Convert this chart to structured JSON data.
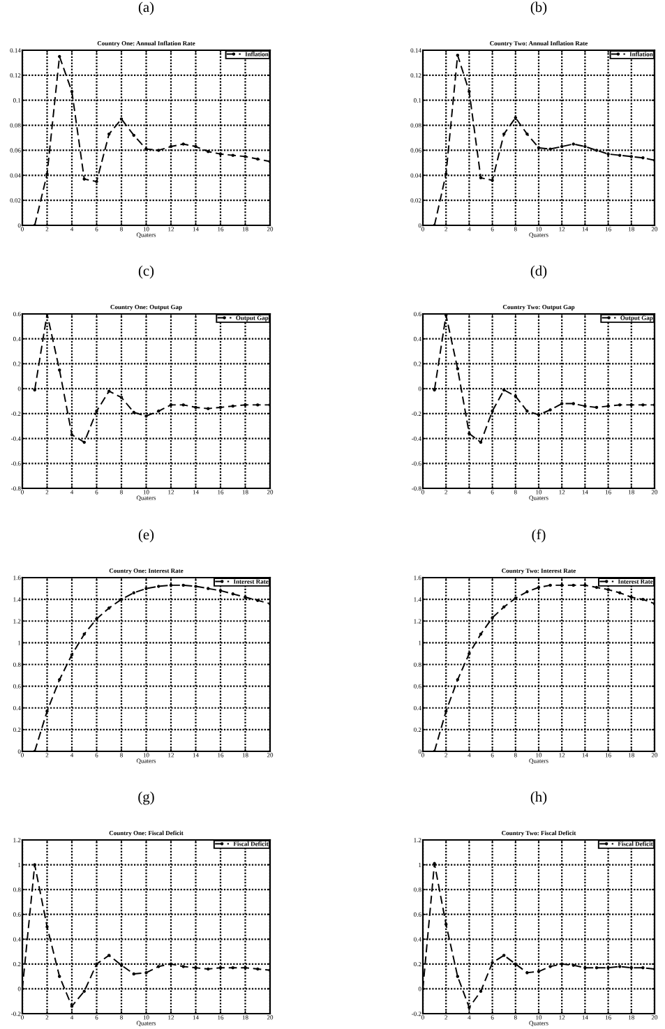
{
  "chart_data": [
    {
      "type": "line",
      "title": "Country One: Annual Inflation Rate",
      "xlabel": "Quaters",
      "annotations": [
        "(a)"
      ],
      "x": [
        1,
        2,
        3,
        4,
        5,
        6,
        7,
        8,
        9,
        10,
        11,
        12,
        13,
        14,
        15,
        16,
        17,
        18,
        19,
        20
      ],
      "series": [
        {
          "name": "Inflation",
          "color": "#000000",
          "values": [
            0,
            0.041,
            0.135,
            0.107,
            0.037,
            0.035,
            0.073,
            0.085,
            0.072,
            0.061,
            0.06,
            0.063,
            0.065,
            0.063,
            0.059,
            0.057,
            0.056,
            0.055,
            0.053,
            0.051
          ]
        }
      ],
      "xlim": [
        0,
        20
      ],
      "ylim": [
        0,
        0.14
      ],
      "xticks": [
        0,
        2,
        4,
        6,
        8,
        10,
        12,
        14,
        16,
        18,
        20
      ],
      "yticks": [
        0,
        0.02,
        0.04,
        0.06,
        0.08,
        0.1,
        0.12,
        0.14
      ],
      "grid": true,
      "legend": "top right",
      "marker": "circle",
      "line_style": "dashed"
    },
    {
      "type": "line",
      "title": "Country Two: Annual Inflation Rate",
      "xlabel": "Quaters",
      "annotations": [
        "(b)"
      ],
      "x": [
        1,
        2,
        3,
        4,
        5,
        6,
        7,
        8,
        9,
        10,
        11,
        12,
        13,
        14,
        15,
        16,
        17,
        18,
        19,
        20
      ],
      "series": [
        {
          "name": "Inflation",
          "color": "#000000",
          "values": [
            0,
            0.041,
            0.136,
            0.107,
            0.038,
            0.036,
            0.073,
            0.086,
            0.073,
            0.062,
            0.061,
            0.063,
            0.065,
            0.063,
            0.06,
            0.057,
            0.056,
            0.055,
            0.054,
            0.052
          ]
        }
      ],
      "xlim": [
        0,
        20
      ],
      "ylim": [
        0,
        0.14
      ],
      "xticks": [
        0,
        2,
        4,
        6,
        8,
        10,
        12,
        14,
        16,
        18,
        20
      ],
      "yticks": [
        0,
        0.02,
        0.04,
        0.06,
        0.08,
        0.1,
        0.12,
        0.14
      ],
      "grid": true,
      "legend": "top right",
      "marker": "circle",
      "line_style": "dashed"
    },
    {
      "type": "line",
      "title": "Country One: Output Gap",
      "xlabel": "Quaters",
      "annotations": [
        "(c)"
      ],
      "x": [
        1,
        2,
        3,
        4,
        5,
        6,
        7,
        8,
        9,
        10,
        11,
        12,
        13,
        14,
        15,
        16,
        17,
        18,
        19,
        20
      ],
      "series": [
        {
          "name": "Output Gap",
          "color": "#000000",
          "values": [
            -0.01,
            0.6,
            0.15,
            -0.37,
            -0.43,
            -0.18,
            -0.02,
            -0.07,
            -0.19,
            -0.22,
            -0.18,
            -0.13,
            -0.13,
            -0.15,
            -0.16,
            -0.15,
            -0.14,
            -0.13,
            -0.13,
            -0.13
          ]
        }
      ],
      "xlim": [
        0,
        20
      ],
      "ylim": [
        -0.8,
        0.6
      ],
      "xticks": [
        0,
        2,
        4,
        6,
        8,
        10,
        12,
        14,
        16,
        18,
        20
      ],
      "yticks": [
        -0.8,
        -0.6,
        -0.4,
        -0.2,
        0,
        0.2,
        0.4,
        0.6
      ],
      "grid": true,
      "legend": "top right",
      "marker": "circle",
      "line_style": "dashed"
    },
    {
      "type": "line",
      "title": "Country Two: Output Gap",
      "xlabel": "Quaters",
      "annotations": [
        "(d)"
      ],
      "x": [
        1,
        2,
        3,
        4,
        5,
        6,
        7,
        8,
        9,
        10,
        11,
        12,
        13,
        14,
        15,
        16,
        17,
        18,
        19,
        20
      ],
      "series": [
        {
          "name": "Output Gap",
          "color": "#000000",
          "values": [
            -0.01,
            0.59,
            0.16,
            -0.36,
            -0.43,
            -0.18,
            -0.01,
            -0.06,
            -0.18,
            -0.21,
            -0.17,
            -0.12,
            -0.12,
            -0.14,
            -0.15,
            -0.14,
            -0.13,
            -0.13,
            -0.13,
            -0.13
          ]
        }
      ],
      "xlim": [
        0,
        20
      ],
      "ylim": [
        -0.8,
        0.6
      ],
      "xticks": [
        0,
        2,
        4,
        6,
        8,
        10,
        12,
        14,
        16,
        18,
        20
      ],
      "yticks": [
        -0.8,
        -0.6,
        -0.4,
        -0.2,
        0,
        0.2,
        0.4,
        0.6
      ],
      "grid": true,
      "legend": "top right",
      "marker": "circle",
      "line_style": "dashed"
    },
    {
      "type": "line",
      "title": "Country One: Interest Rate",
      "xlabel": "Quaters",
      "annotations": [
        "(e)"
      ],
      "x": [
        1,
        2,
        3,
        4,
        5,
        6,
        7,
        8,
        9,
        10,
        11,
        12,
        13,
        14,
        15,
        16,
        17,
        18,
        19,
        20
      ],
      "series": [
        {
          "name": "Interest Rate",
          "color": "#000000",
          "values": [
            0,
            0.37,
            0.66,
            0.89,
            1.08,
            1.22,
            1.32,
            1.4,
            1.46,
            1.5,
            1.52,
            1.53,
            1.53,
            1.52,
            1.5,
            1.48,
            1.45,
            1.42,
            1.39,
            1.36
          ]
        }
      ],
      "xlim": [
        0,
        20
      ],
      "ylim": [
        0,
        1.6
      ],
      "xticks": [
        0,
        2,
        4,
        6,
        8,
        10,
        12,
        14,
        16,
        18,
        20
      ],
      "yticks": [
        0,
        0.2,
        0.4,
        0.6,
        0.8,
        1,
        1.2,
        1.4,
        1.6
      ],
      "grid": true,
      "legend": "top right",
      "marker": "circle",
      "line_style": "dashed"
    },
    {
      "type": "line",
      "title": "Country Two: Interest Rate",
      "xlabel": "Quaters",
      "annotations": [
        "(f)"
      ],
      "x": [
        1,
        2,
        3,
        4,
        5,
        6,
        7,
        8,
        9,
        10,
        11,
        12,
        13,
        14,
        15,
        16,
        17,
        18,
        19,
        20
      ],
      "series": [
        {
          "name": "Interest Rate",
          "color": "#000000",
          "values": [
            0,
            0.37,
            0.66,
            0.9,
            1.08,
            1.23,
            1.33,
            1.41,
            1.47,
            1.51,
            1.53,
            1.53,
            1.53,
            1.53,
            1.51,
            1.49,
            1.46,
            1.42,
            1.4,
            1.36
          ]
        }
      ],
      "xlim": [
        0,
        20
      ],
      "ylim": [
        0,
        1.6
      ],
      "xticks": [
        0,
        2,
        4,
        6,
        8,
        10,
        12,
        14,
        16,
        18,
        20
      ],
      "yticks": [
        0,
        0.2,
        0.4,
        0.6,
        0.8,
        1,
        1.2,
        1.4,
        1.6
      ],
      "grid": true,
      "legend": "top right",
      "marker": "circle",
      "line_style": "dashed"
    },
    {
      "type": "line",
      "title": "Country One: Fiscal Deficit",
      "xlabel": "Quaters",
      "annotations": [
        "(g)"
      ],
      "x": [
        0,
        1,
        2,
        3,
        4,
        5,
        6,
        7,
        8,
        9,
        10,
        11,
        12,
        13,
        14,
        15,
        16,
        17,
        18,
        19,
        20
      ],
      "series": [
        {
          "name": "Fiscal Deficit",
          "color": "#000000",
          "values": [
            0,
            1.0,
            0.5,
            0.1,
            -0.14,
            -0.02,
            0.2,
            0.27,
            0.19,
            0.12,
            0.13,
            0.18,
            0.2,
            0.18,
            0.17,
            0.16,
            0.17,
            0.17,
            0.17,
            0.16,
            0.15
          ]
        }
      ],
      "xlim": [
        0,
        20
      ],
      "ylim": [
        -0.2,
        1.2
      ],
      "xticks": [
        0,
        2,
        4,
        6,
        8,
        10,
        12,
        14,
        16,
        18,
        20
      ],
      "yticks": [
        -0.2,
        0,
        0.2,
        0.4,
        0.6,
        0.8,
        1,
        1.2
      ],
      "grid": true,
      "legend": "top right",
      "marker": "circle",
      "line_style": "dashed"
    },
    {
      "type": "line",
      "title": "Country Two: Fiscal Deficit",
      "xlabel": "Quaters",
      "annotations": [
        "(h)"
      ],
      "x": [
        0,
        1,
        2,
        3,
        4,
        5,
        6,
        7,
        8,
        9,
        10,
        11,
        12,
        13,
        14,
        15,
        16,
        17,
        18,
        19,
        20
      ],
      "series": [
        {
          "name": "Fiscal Deficit",
          "color": "#000000",
          "values": [
            0,
            1.01,
            0.52,
            0.1,
            -0.15,
            -0.02,
            0.21,
            0.27,
            0.2,
            0.13,
            0.14,
            0.18,
            0.2,
            0.19,
            0.17,
            0.17,
            0.17,
            0.18,
            0.17,
            0.17,
            0.16
          ]
        }
      ],
      "xlim": [
        0,
        20
      ],
      "ylim": [
        -0.2,
        1.2
      ],
      "xticks": [
        0,
        2,
        4,
        6,
        8,
        10,
        12,
        14,
        16,
        18,
        20
      ],
      "yticks": [
        -0.2,
        0,
        0.2,
        0.4,
        0.6,
        0.8,
        1,
        1.2
      ],
      "grid": true,
      "legend": "top right",
      "marker": "circle",
      "line_style": "dashed"
    }
  ]
}
